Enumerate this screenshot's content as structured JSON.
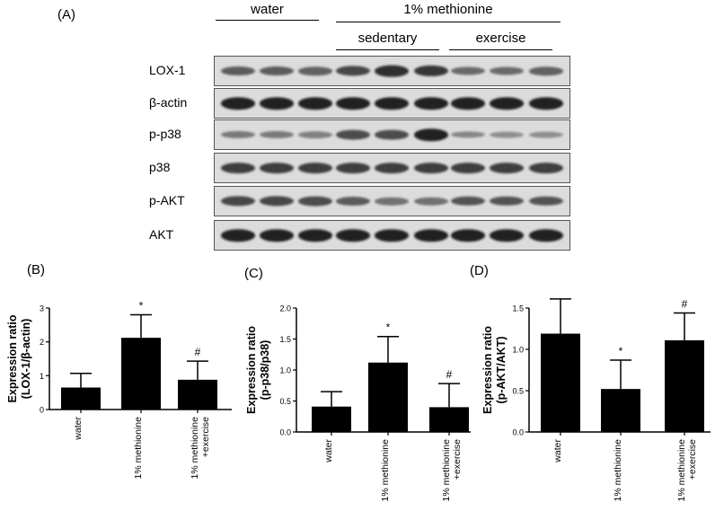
{
  "figure": {
    "panel_a_letter": "(A)",
    "panel_b_letter": "(B)",
    "panel_c_letter": "(C)",
    "panel_d_letter": "(D)",
    "group_water": "water",
    "group_methionine": "1% methionine",
    "group_sedentary": "sedentary",
    "group_exercise": "exercise"
  },
  "blot_rows": [
    {
      "label": "LOX-1",
      "intensity": [
        0.55,
        0.55,
        0.5,
        0.7,
        0.85,
        0.8,
        0.45,
        0.45,
        0.5
      ]
    },
    {
      "label": "β-actin",
      "intensity": [
        0.95,
        0.95,
        0.95,
        0.95,
        0.95,
        0.95,
        0.95,
        0.95,
        0.95
      ]
    },
    {
      "label": "p-p38",
      "intensity": [
        0.35,
        0.35,
        0.3,
        0.65,
        0.65,
        0.95,
        0.25,
        0.2,
        0.2
      ]
    },
    {
      "label": "p38",
      "intensity": [
        0.75,
        0.75,
        0.75,
        0.75,
        0.75,
        0.75,
        0.75,
        0.75,
        0.75
      ]
    },
    {
      "label": "p-AKT",
      "intensity": [
        0.7,
        0.7,
        0.65,
        0.55,
        0.4,
        0.4,
        0.6,
        0.6,
        0.6
      ]
    },
    {
      "label": "AKT",
      "intensity": [
        0.95,
        0.95,
        0.95,
        0.95,
        0.95,
        0.95,
        0.95,
        0.95,
        0.95
      ]
    }
  ],
  "chart_data": [
    {
      "type": "bar",
      "panel": "(B)",
      "categories": [
        "water",
        "1% methionine",
        "1% methionine\n+exercise"
      ],
      "values": [
        0.65,
        2.12,
        0.88
      ],
      "errors": [
        0.42,
        0.68,
        0.55
      ],
      "annotations": [
        "",
        "*",
        "#"
      ],
      "ylabel": "Expression ratio\n(LOX-1/β-actin)",
      "ylim": [
        0,
        3
      ],
      "yticks": [
        "0",
        "1",
        "2",
        "3"
      ],
      "ytick_values": [
        0,
        1,
        2,
        3
      ]
    },
    {
      "type": "bar",
      "panel": "(C)",
      "categories": [
        "water",
        "1% methionine",
        "1% methionine\n+exercise"
      ],
      "values": [
        0.41,
        1.12,
        0.4
      ],
      "errors": [
        0.24,
        0.42,
        0.38
      ],
      "annotations": [
        "",
        "*",
        "#"
      ],
      "ylabel": "Expression ratio\n(p-p38/p38)",
      "ylim": [
        0,
        2.0
      ],
      "yticks": [
        "0.0",
        "0.5",
        "1.0",
        "1.5",
        "2.0"
      ],
      "ytick_values": [
        0,
        0.5,
        1.0,
        1.5,
        2.0
      ]
    },
    {
      "type": "bar",
      "panel": "(D)",
      "categories": [
        "water",
        "1% methionine",
        "1% methionine\n+exercise"
      ],
      "values": [
        1.19,
        0.52,
        1.11
      ],
      "errors": [
        0.42,
        0.35,
        0.33
      ],
      "annotations": [
        "",
        "*",
        "#"
      ],
      "ylabel": "Expression ratio\n(p-AKT/AKT)",
      "ylim": [
        0,
        1.5
      ],
      "yticks": [
        "0.0",
        "0.5",
        "1.0",
        "1.5"
      ],
      "ytick_values": [
        0,
        0.5,
        1.0,
        1.5
      ]
    }
  ]
}
